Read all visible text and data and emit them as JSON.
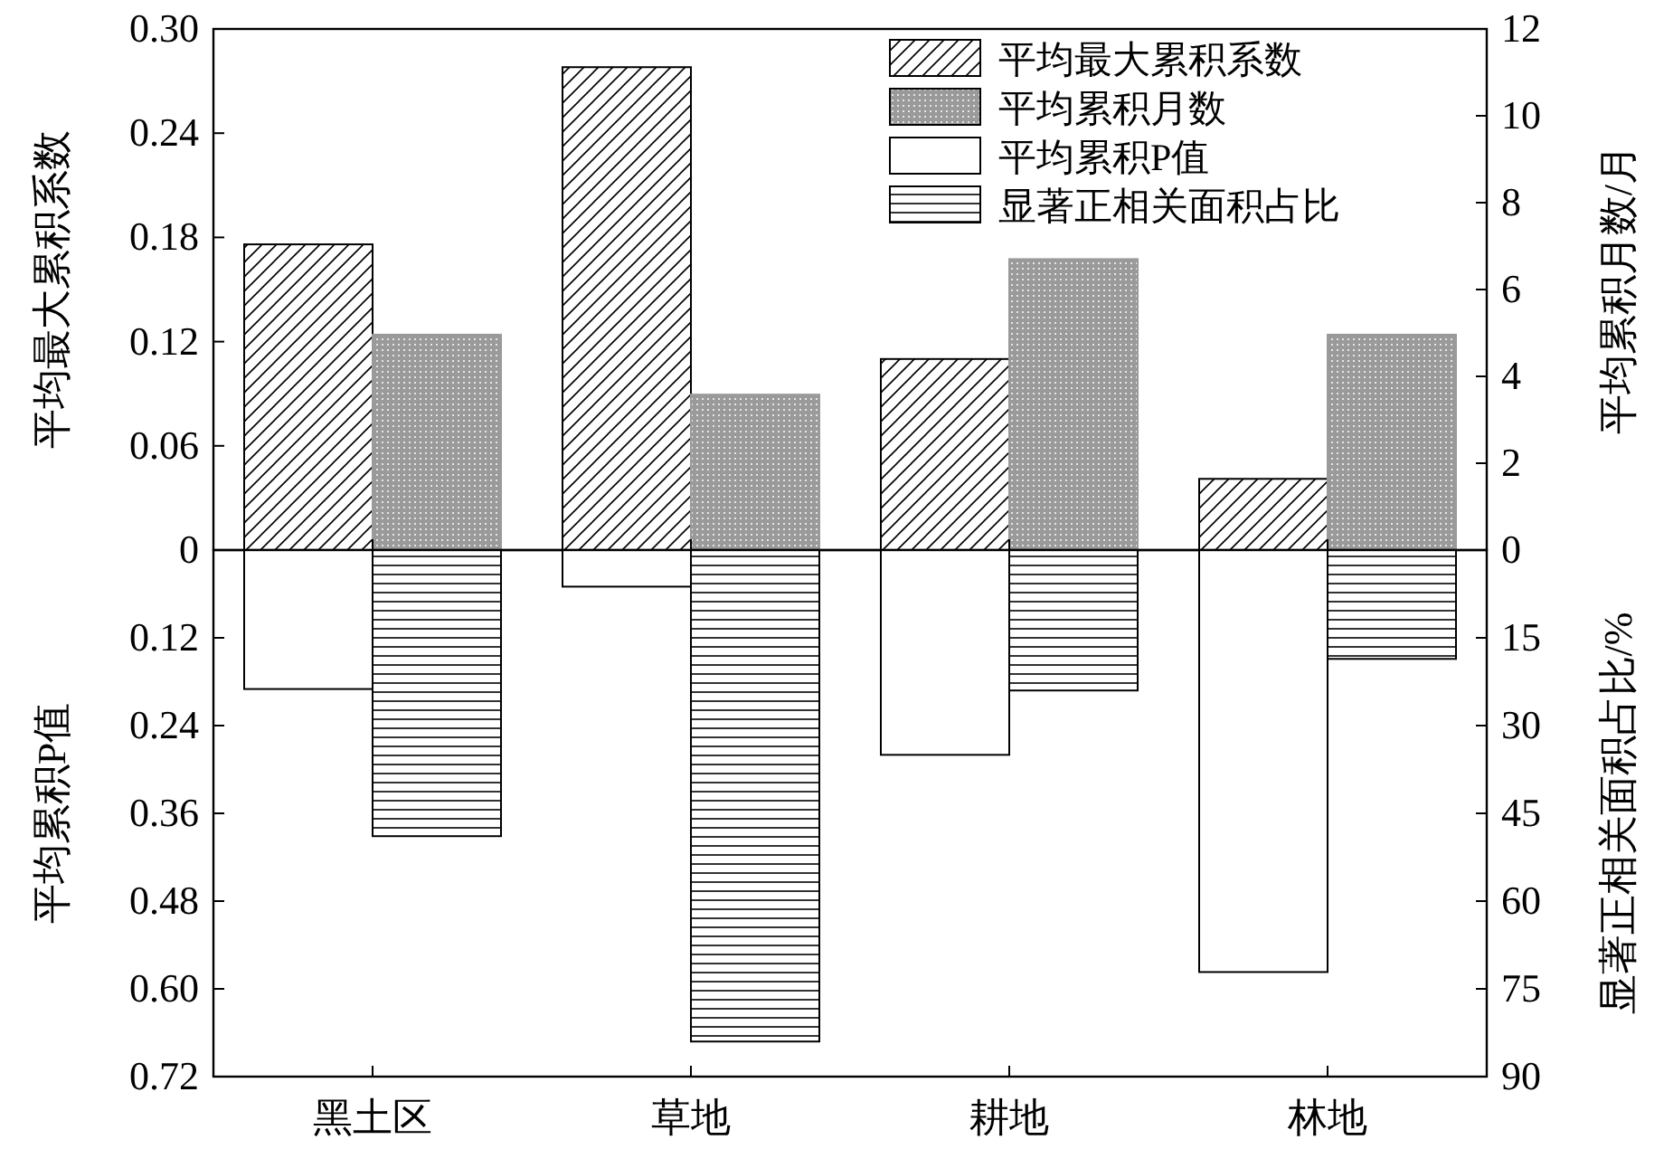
{
  "chart_data": [
    {
      "type": "bar",
      "categories": [
        null,
        null,
        null,
        null
      ],
      "ylabel": "平均最大累积系数",
      "y2label": "平均累积月数/月",
      "ylim": [
        0,
        0.3
      ],
      "yticks": [
        0,
        {
          "value": 0.06,
          "label": "0.06"
        },
        {
          "value": 0.12,
          "label": "0.12"
        },
        {
          "value": 0.18,
          "label": "0.18"
        },
        {
          "value": 0.24,
          "label": "0.24"
        },
        {
          "value": 0.3,
          "label": "0.30"
        }
      ],
      "y2lim": [
        0,
        12
      ],
      "y2ticks": [
        0,
        2,
        4,
        6,
        8,
        10,
        12
      ],
      "tick_labels": "y",
      "legend": "top right",
      "series": [
        {
          "name": "平均最大累积系数",
          "color": "#000000",
          "axis": "y",
          "values": [
            0.176,
            0.278,
            0.11,
            0.041
          ]
        },
        {
          "name": "平均累积月数",
          "color": "#9a9a9a",
          "axis": "y2",
          "values": [
            4.96,
            3.58,
            6.7,
            4.96
          ]
        }
      ]
    },
    {
      "type": "bar",
      "categories": [
        "黑土区",
        "草地",
        "耕地",
        "林地"
      ],
      "ylabel": "平均累积P值",
      "y2label": "显著正相关面积占比/%",
      "ylim": [
        0.72,
        0
      ],
      "yticks": [
        {
          "value": 0.12,
          "label": "0.12"
        },
        {
          "value": 0.24,
          "label": "0.24"
        },
        {
          "value": 0.36,
          "label": "0.36"
        },
        {
          "value": 0.48,
          "label": "0.48"
        },
        {
          "value": 0.6,
          "label": "0.60"
        },
        {
          "value": 0.72,
          "label": "0.72"
        }
      ],
      "y2lim": [
        90,
        0
      ],
      "y2ticks": [
        15,
        30,
        45,
        60,
        75,
        90
      ],
      "legend": "top right",
      "series": [
        {
          "name": "平均累积P值",
          "color": "#ffffff",
          "axis": "y",
          "values": [
            0.19,
            0.05,
            0.28,
            0.577
          ]
        },
        {
          "name": "显著正相关面积占比",
          "color": "#000000",
          "axis": "y2",
          "values": [
            48.9,
            84,
            24,
            18.6
          ]
        }
      ]
    }
  ]
}
